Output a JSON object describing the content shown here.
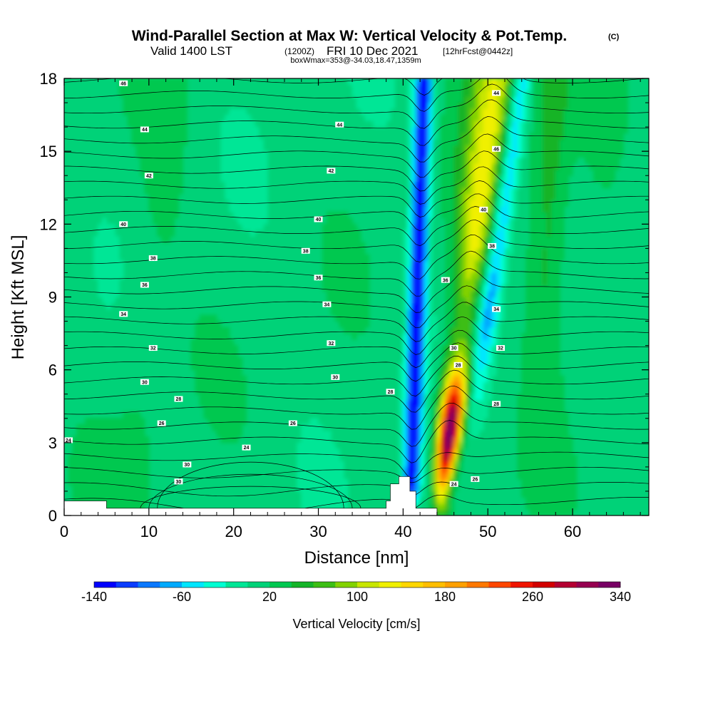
{
  "title": {
    "main": "Wind-Parallel Section at Max W: Vertical Velocity & Pot.Temp.",
    "copyright": "(C)",
    "valid_prefix": "Valid 1400 LST",
    "valid_utc": "(1200Z)",
    "valid_date": "FRI 10 Dec 2021",
    "forecast": "[12hrFcst@0442z]",
    "box_info": "boxWmax=353@-34.03,18.47,1359m"
  },
  "chart_data": {
    "type": "heatmap",
    "xlabel": "Distance [nm]",
    "ylabel": "Height [Kft MSL]",
    "xlim": [
      0,
      69
    ],
    "ylim": [
      0,
      18
    ],
    "x_ticks": [
      0,
      10,
      20,
      30,
      40,
      50,
      60
    ],
    "y_ticks": [
      0,
      3,
      6,
      9,
      12,
      15,
      18
    ],
    "colorbar": {
      "title": "Vertical Velocity [cm/s]",
      "levels_min": -140,
      "level_step": 20,
      "tick_values": [
        -140,
        -60,
        20,
        100,
        180,
        260,
        340
      ],
      "tick_labels": [
        "-140",
        "-60",
        "20",
        "100",
        "180",
        "260",
        "340"
      ],
      "colors": [
        "#0000ff",
        "#0a3cff",
        "#0a78ff",
        "#00aaff",
        "#00e6ff",
        "#00ffd2",
        "#00e696",
        "#00d278",
        "#00c850",
        "#14b428",
        "#3cbe14",
        "#82d200",
        "#c8e600",
        "#f0f000",
        "#ffd700",
        "#ffbe00",
        "#ffa000",
        "#ff7800",
        "#ff4600",
        "#f01400",
        "#d20000",
        "#b40032",
        "#960050",
        "#780064"
      ]
    },
    "ambient_field_cm_s": 10,
    "velocity_features": [
      {
        "type": "updraft",
        "x_nm": 44.6,
        "x_top_nm": 51.0,
        "z_peak_kft": 3.5,
        "z_range_kft": [
          0.3,
          18
        ],
        "peak_cm_s": 353
      },
      {
        "type": "downdraft",
        "x_nm": 41.0,
        "x_top_nm": 42.5,
        "z_range_kft": [
          0.3,
          18
        ],
        "min_cm_s": -140
      },
      {
        "type": "downdraft",
        "x_nm": 47.0,
        "x_top_nm": 54.0,
        "z_range_kft": [
          4,
          18
        ],
        "min_cm_s": -80
      }
    ],
    "contour_field": "Potential Temperature",
    "contour_labels": [
      {
        "x": 7,
        "z": 17.8,
        "text": "46"
      },
      {
        "x": 9.5,
        "z": 15.9,
        "text": "44"
      },
      {
        "x": 10,
        "z": 14.0,
        "text": "42"
      },
      {
        "x": 7,
        "z": 12.0,
        "text": "40"
      },
      {
        "x": 10.5,
        "z": 10.6,
        "text": "38"
      },
      {
        "x": 9.5,
        "z": 9.5,
        "text": "36"
      },
      {
        "x": 7,
        "z": 8.3,
        "text": "34"
      },
      {
        "x": 10.5,
        "z": 6.9,
        "text": "32"
      },
      {
        "x": 9.5,
        "z": 5.5,
        "text": "30"
      },
      {
        "x": 13.5,
        "z": 4.8,
        "text": "28"
      },
      {
        "x": 11.5,
        "z": 3.8,
        "text": "26"
      },
      {
        "x": 0.5,
        "z": 3.1,
        "text": "24"
      },
      {
        "x": 14.5,
        "z": 2.1,
        "text": "30"
      },
      {
        "x": 13.5,
        "z": 1.4,
        "text": "30"
      },
      {
        "x": 32.5,
        "z": 16.1,
        "text": "44"
      },
      {
        "x": 31.5,
        "z": 14.2,
        "text": "42"
      },
      {
        "x": 30,
        "z": 12.2,
        "text": "40"
      },
      {
        "x": 28.5,
        "z": 10.9,
        "text": "38"
      },
      {
        "x": 30,
        "z": 9.8,
        "text": "36"
      },
      {
        "x": 31,
        "z": 8.7,
        "text": "34"
      },
      {
        "x": 31.5,
        "z": 7.1,
        "text": "32"
      },
      {
        "x": 32,
        "z": 5.7,
        "text": "30"
      },
      {
        "x": 27,
        "z": 3.8,
        "text": "26"
      },
      {
        "x": 21.5,
        "z": 2.8,
        "text": "24"
      },
      {
        "x": 38.5,
        "z": 5.1,
        "text": "28"
      },
      {
        "x": 51,
        "z": 17.4,
        "text": "44"
      },
      {
        "x": 51,
        "z": 15.1,
        "text": "46"
      },
      {
        "x": 49.5,
        "z": 12.6,
        "text": "40"
      },
      {
        "x": 50.5,
        "z": 11.1,
        "text": "38"
      },
      {
        "x": 45,
        "z": 9.7,
        "text": "36"
      },
      {
        "x": 51,
        "z": 8.5,
        "text": "34"
      },
      {
        "x": 46,
        "z": 6.9,
        "text": "30"
      },
      {
        "x": 46.5,
        "z": 6.2,
        "text": "28"
      },
      {
        "x": 51.5,
        "z": 6.9,
        "text": "32"
      },
      {
        "x": 51,
        "z": 4.6,
        "text": "28"
      },
      {
        "x": 46,
        "z": 1.3,
        "text": "24"
      },
      {
        "x": 48.5,
        "z": 1.5,
        "text": "26"
      }
    ],
    "terrain": [
      [
        0,
        0.6
      ],
      [
        5,
        0.6
      ],
      [
        5,
        0.3
      ],
      [
        38,
        0.3
      ],
      [
        38,
        0.6
      ],
      [
        38.5,
        0.6
      ],
      [
        38.5,
        1.3
      ],
      [
        39.5,
        1.3
      ],
      [
        39.5,
        1.6
      ],
      [
        40.8,
        1.6
      ],
      [
        40.8,
        1.0
      ],
      [
        41.5,
        1.0
      ],
      [
        41.5,
        0.3
      ],
      [
        44,
        0.3
      ],
      [
        44,
        0
      ],
      [
        0,
        0
      ]
    ]
  }
}
